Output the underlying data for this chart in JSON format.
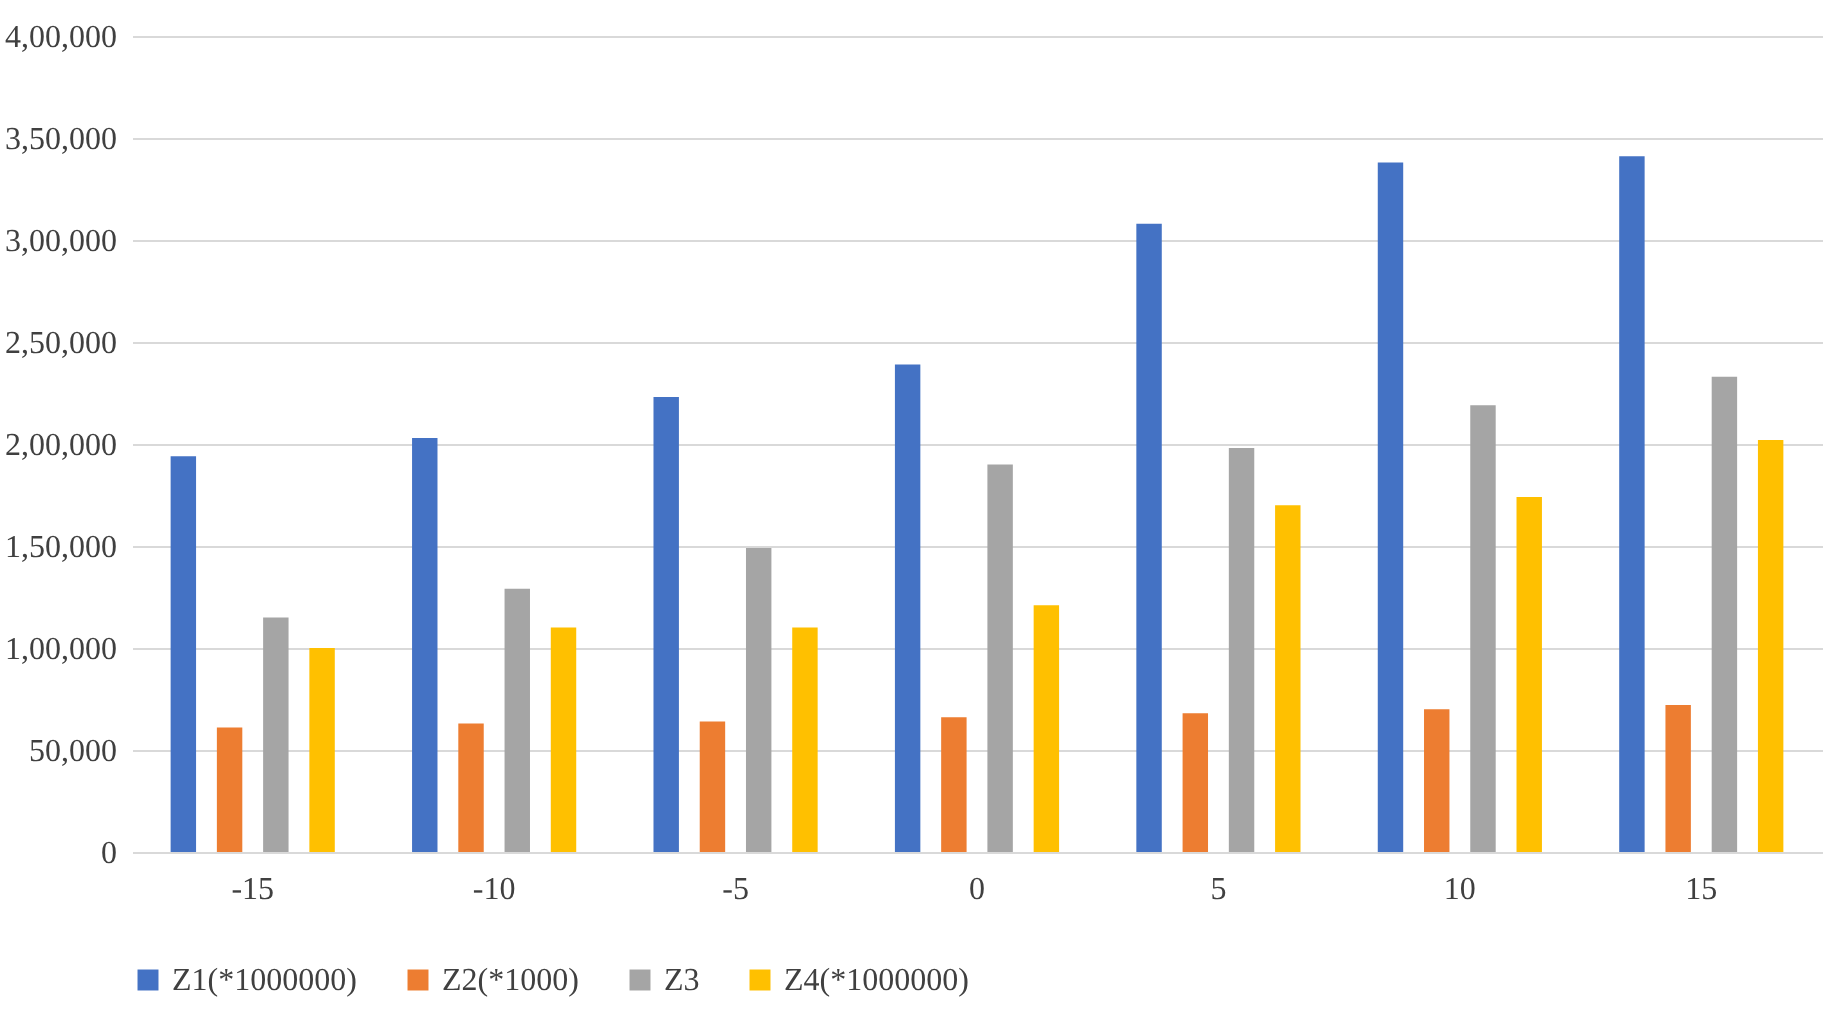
{
  "chart_data": {
    "type": "bar",
    "categories": [
      "-15",
      "-10",
      "-5",
      "0",
      "5",
      "10",
      "15"
    ],
    "series": [
      {
        "name": "Z1(*1000000)",
        "color": "#4472c4",
        "values": [
          194000,
          203000,
          223000,
          239000,
          308000,
          338000,
          341000
        ]
      },
      {
        "name": "Z2(*1000)",
        "color": "#ed7d31",
        "values": [
          61000,
          63000,
          64000,
          66000,
          68000,
          70000,
          72000
        ]
      },
      {
        "name": "Z3",
        "color": "#a5a5a5",
        "values": [
          115000,
          129000,
          149000,
          190000,
          198000,
          219000,
          233000
        ]
      },
      {
        "name": "Z4(*1000000)",
        "color": "#ffc000",
        "values": [
          100000,
          110000,
          110000,
          121000,
          170000,
          174000,
          202000
        ]
      }
    ],
    "ylim": [
      0,
      400000
    ],
    "yticks": [
      {
        "value": 0,
        "label": "0"
      },
      {
        "value": 50000,
        "label": "50,000"
      },
      {
        "value": 100000,
        "label": "1,00,000"
      },
      {
        "value": 150000,
        "label": "1,50,000"
      },
      {
        "value": 200000,
        "label": "2,00,000"
      },
      {
        "value": 250000,
        "label": "2,50,000"
      },
      {
        "value": 300000,
        "label": "3,00,000"
      },
      {
        "value": 350000,
        "label": "3,50,000"
      },
      {
        "value": 400000,
        "label": "4,00,000"
      }
    ],
    "grid": "y",
    "legend": "bottom"
  }
}
